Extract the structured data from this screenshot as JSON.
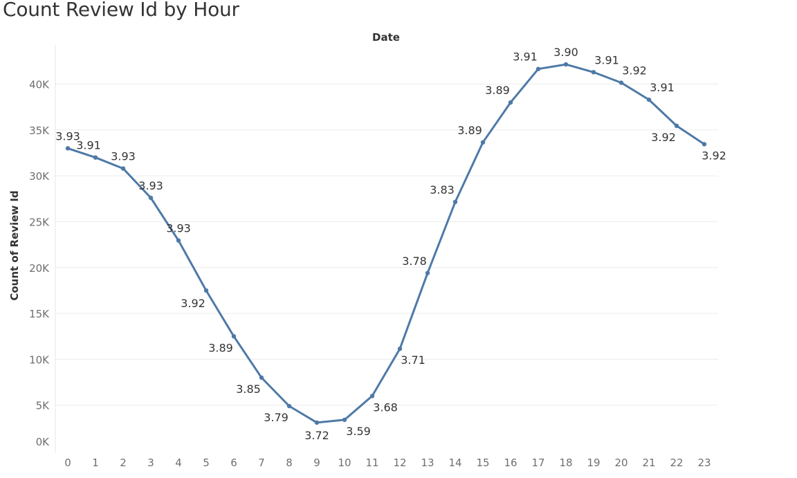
{
  "title": "Count Review Id by Hour",
  "colors": {
    "line": "#4e79a7",
    "text": "#333333",
    "tick": "#6e6e6e",
    "grid": "#ececec"
  },
  "chart_data": {
    "type": "line",
    "title": "Count Review Id by Hour",
    "column_header": "Date",
    "xlabel": "",
    "ylabel": "Count of Review Id",
    "x": [
      0,
      1,
      2,
      3,
      4,
      5,
      6,
      7,
      8,
      9,
      10,
      11,
      12,
      13,
      14,
      15,
      16,
      17,
      18,
      19,
      20,
      21,
      22,
      23
    ],
    "x_tick_labels": [
      "0",
      "1",
      "2",
      "3",
      "4",
      "5",
      "6",
      "7",
      "8",
      "9",
      "10",
      "11",
      "12",
      "13",
      "14",
      "15",
      "16",
      "17",
      "18",
      "19",
      "20",
      "21",
      "22",
      "23"
    ],
    "y_tick_values": [
      0,
      5000,
      10000,
      15000,
      20000,
      25000,
      30000,
      35000,
      40000
    ],
    "y_tick_labels": [
      "0K",
      "5K",
      "10K",
      "15K",
      "20K",
      "25K",
      "30K",
      "35K",
      "40K"
    ],
    "ylim": [
      0,
      43000
    ],
    "grid": true,
    "series": [
      {
        "values": [
          33000,
          32000,
          30800,
          27600,
          22950,
          17500,
          12500,
          8000,
          4900,
          3100,
          3400,
          6000,
          11150,
          19400,
          27150,
          33650,
          38000,
          41650,
          42150,
          41300,
          40150,
          38300,
          35450,
          33450
        ],
        "labels": [
          "3.93",
          "3.91",
          "3.93",
          "3.93",
          "3.93",
          "3.92",
          "3.89",
          "3.85",
          "3.79",
          "3.72",
          "3.59",
          "3.68",
          "3.71",
          "3.78",
          "3.83",
          "3.89",
          "3.89",
          "3.91",
          "3.90",
          "3.91",
          "3.92",
          "3.91",
          "3.92",
          "3.92"
        ]
      }
    ]
  }
}
